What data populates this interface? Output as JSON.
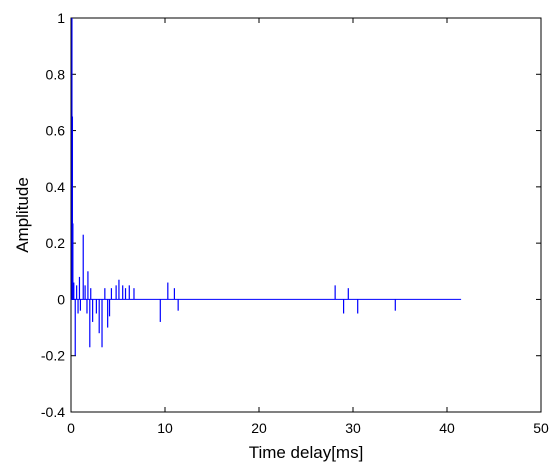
{
  "chart_data": {
    "type": "impulse",
    "title": "",
    "xlabel": "Time delay[ms]",
    "ylabel": "Amplitude",
    "xlim": [
      0,
      50
    ],
    "ylim": [
      -0.4,
      1
    ],
    "xticks": [
      0,
      10,
      20,
      30,
      40,
      50
    ],
    "yticks": [
      -0.4,
      -0.2,
      0,
      0.2,
      0.4,
      0.6,
      0.8,
      1
    ],
    "ytick_labels": [
      "-0.4",
      "-0.2",
      "0",
      "0.2",
      "0.4",
      "0.6",
      "0.8",
      "1"
    ],
    "grid": false,
    "line_color": "#0000ff",
    "baseline": {
      "x_start": 0,
      "x_end": 41.5,
      "y": 0
    },
    "series": [
      {
        "x": [
          0.1,
          0.15,
          0.2,
          0.3,
          0.45,
          0.6,
          0.75,
          0.9,
          1.0,
          1.3,
          1.5,
          1.7,
          1.8,
          2.0,
          2.1,
          2.3,
          2.7,
          3.0,
          3.3,
          3.6,
          3.9,
          4.1,
          4.3,
          4.8,
          5.1,
          5.5,
          5.8,
          6.2,
          6.7,
          9.5,
          10.3,
          11.0,
          11.4,
          28.1,
          29.0,
          29.5,
          30.5,
          34.5
        ],
        "y": [
          1.0,
          0.65,
          0.27,
          0.06,
          -0.2,
          0.05,
          -0.05,
          0.08,
          -0.04,
          0.23,
          0.05,
          -0.05,
          0.1,
          -0.17,
          0.04,
          -0.08,
          -0.05,
          -0.12,
          -0.17,
          0.04,
          -0.1,
          -0.06,
          0.04,
          0.05,
          0.07,
          0.05,
          0.04,
          0.05,
          0.04,
          -0.08,
          0.06,
          0.04,
          -0.04,
          0.05,
          -0.05,
          0.04,
          -0.05,
          -0.04
        ]
      }
    ]
  }
}
